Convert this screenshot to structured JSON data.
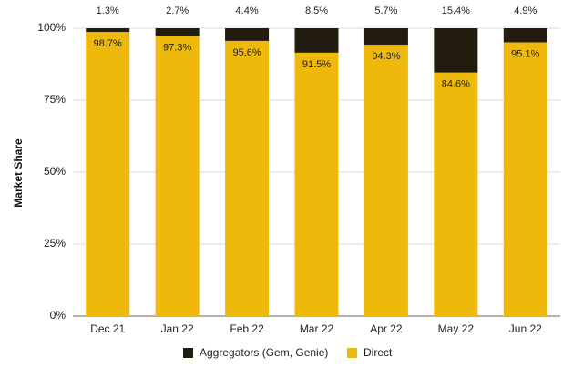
{
  "chart_data": {
    "type": "bar",
    "stacked": true,
    "percent": true,
    "categories": [
      "Dec 21",
      "Jan 22",
      "Feb 22",
      "Mar 22",
      "Apr 22",
      "May 22",
      "Jun 22"
    ],
    "series": [
      {
        "name": "Direct",
        "color": "#efb90b",
        "values": [
          98.7,
          97.3,
          95.6,
          91.5,
          94.3,
          84.6,
          95.1
        ],
        "labels": [
          "98.7%",
          "97.3%",
          "95.6%",
          "91.5%",
          "94.3%",
          "84.6%",
          "95.1%"
        ]
      },
      {
        "name": "Aggregators (Gem, Genie)",
        "color": "#231d0f",
        "values": [
          1.3,
          2.7,
          4.4,
          8.5,
          5.7,
          15.4,
          4.9
        ],
        "labels": [
          "1.3%",
          "2.7%",
          "4.4%",
          "8.5%",
          "5.7%",
          "15.4%",
          "4.9%"
        ]
      }
    ],
    "ylabel": "Market Share",
    "xlabel": "",
    "ylim": [
      0,
      100
    ],
    "yticks": [
      "0%",
      "25%",
      "50%",
      "75%",
      "100%"
    ],
    "ytick_values": [
      0,
      25,
      50,
      75,
      100
    ],
    "legend_position": "bottom",
    "legend_order": [
      "Aggregators (Gem, Genie)",
      "Direct"
    ],
    "grid": true
  }
}
